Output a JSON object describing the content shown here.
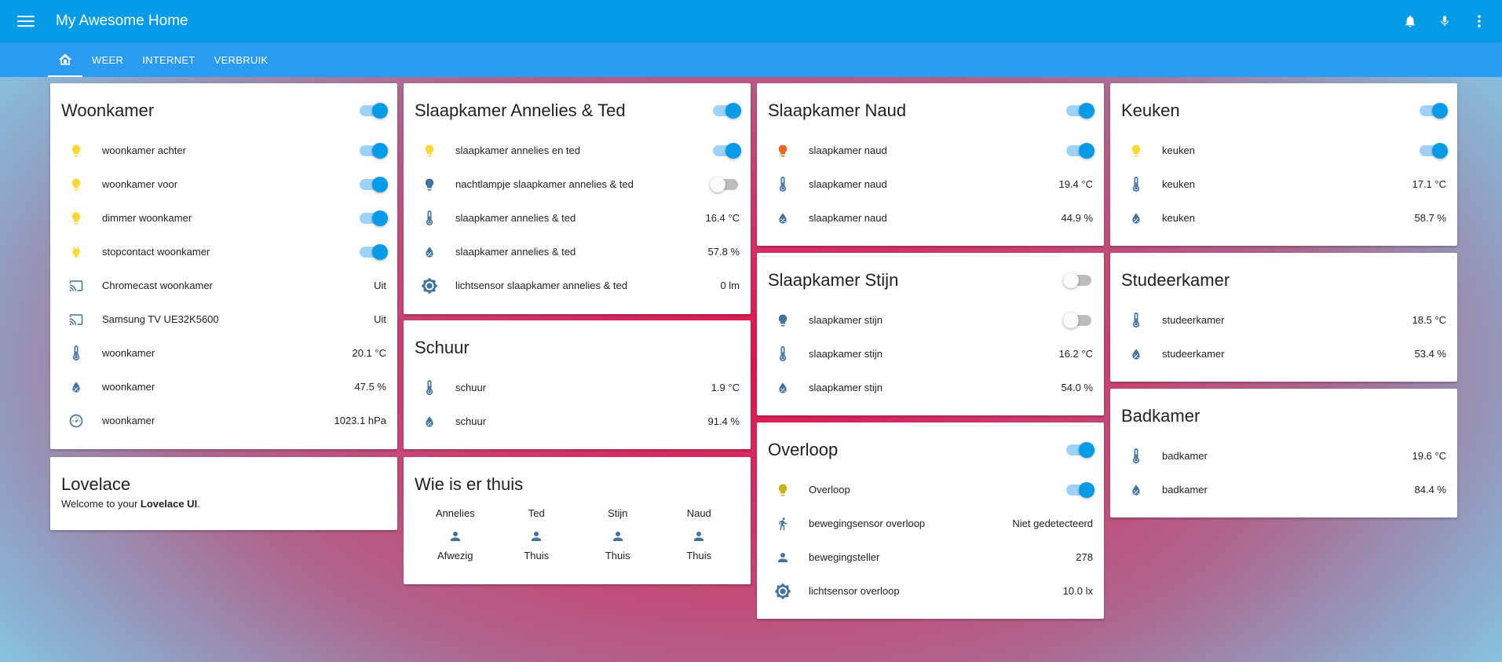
{
  "app": {
    "title": "My Awesome Home"
  },
  "icons": {
    "menu": "menu-icon",
    "bell": "bell-icon",
    "mic": "microphone-icon",
    "more": "more-vert-icon",
    "home": "home-icon"
  },
  "colors": {
    "primary": "#039be5",
    "tabs": "#2b9bf0",
    "light_on": "#fdd835",
    "light_off": "#44739e",
    "light_red": "#e8671c",
    "light_dim": "#c9b318",
    "icon": "#44739e"
  },
  "tabs": [
    "WEER",
    "INTERNET",
    "VERBRUIK"
  ],
  "woonkamer": {
    "title": "Woonkamer",
    "rows": [
      {
        "name": "woonkamer achter",
        "icon": "bulb-icon"
      },
      {
        "name": "woonkamer voor",
        "icon": "bulb-icon"
      },
      {
        "name": "dimmer woonkamer",
        "icon": "bulb-icon"
      },
      {
        "name": "stopcontact woonkamer",
        "icon": "plug-icon"
      },
      {
        "name": "Chromecast woonkamer",
        "icon": "cast-icon",
        "value": "Uit"
      },
      {
        "name": "Samsung TV UE32K5600",
        "icon": "cast-icon",
        "value": "Uit"
      },
      {
        "name": "woonkamer",
        "icon": "thermometer-icon",
        "value": "20.1 °C"
      },
      {
        "name": "woonkamer",
        "icon": "water-percent-icon",
        "value": "47.5 %"
      },
      {
        "name": "woonkamer",
        "icon": "gauge-icon",
        "value": "1023.1 hPa"
      }
    ]
  },
  "lovelace": {
    "title": "Lovelace",
    "text_pre": "Welcome to your ",
    "text_bold": "Lovelace UI",
    "text_post": "."
  },
  "slaapkamer_at": {
    "title": "Slaapkamer Annelies & Ted",
    "rows": [
      {
        "name": "slaapkamer annelies en ted",
        "icon": "bulb-icon"
      },
      {
        "name": "nachtlampje slaapkamer annelies & ted",
        "icon": "bulb-icon"
      },
      {
        "name": "slaapkamer annelies & ted",
        "icon": "thermometer-icon",
        "value": "16.4 °C"
      },
      {
        "name": "slaapkamer annelies & ted",
        "icon": "water-percent-icon",
        "value": "57.8 %"
      },
      {
        "name": "lichtsensor slaapkamer annelies & ted",
        "icon": "brightness-icon",
        "value": "0 lm"
      }
    ]
  },
  "schuur": {
    "title": "Schuur",
    "rows": [
      {
        "name": "schuur",
        "icon": "thermometer-icon",
        "value": "1.9 °C"
      },
      {
        "name": "schuur",
        "icon": "water-percent-icon",
        "value": "91.4 %"
      }
    ]
  },
  "wie": {
    "title": "Wie is er thuis",
    "persons": [
      {
        "name": "Annelies",
        "state": "Afwezig"
      },
      {
        "name": "Ted",
        "state": "Thuis"
      },
      {
        "name": "Stijn",
        "state": "Thuis"
      },
      {
        "name": "Naud",
        "state": "Thuis"
      }
    ]
  },
  "slaapkamer_naud": {
    "title": "Slaapkamer Naud",
    "rows": [
      {
        "name": "slaapkamer naud",
        "icon": "bulb-icon"
      },
      {
        "name": "slaapkamer naud",
        "icon": "thermometer-icon",
        "value": "19.4 °C"
      },
      {
        "name": "slaapkamer naud",
        "icon": "water-percent-icon",
        "value": "44.9 %"
      }
    ]
  },
  "slaapkamer_stijn": {
    "title": "Slaapkamer Stijn",
    "rows": [
      {
        "name": "slaapkamer stijn",
        "icon": "bulb-icon"
      },
      {
        "name": "slaapkamer stijn",
        "icon": "thermometer-icon",
        "value": "16.2 °C"
      },
      {
        "name": "slaapkamer stijn",
        "icon": "water-percent-icon",
        "value": "54.0 %"
      }
    ]
  },
  "overloop": {
    "title": "Overloop",
    "rows": [
      {
        "name": "Overloop",
        "icon": "bulb-icon"
      },
      {
        "name": "bewegingsensor overloop",
        "icon": "walk-icon",
        "value": "Niet gedetecteerd"
      },
      {
        "name": "bewegingsteller",
        "icon": "account-icon",
        "value": "278"
      },
      {
        "name": "lichtsensor overloop",
        "icon": "brightness-icon",
        "value": "10.0 lx"
      }
    ]
  },
  "keuken": {
    "title": "Keuken",
    "rows": [
      {
        "name": "keuken",
        "icon": "bulb-icon"
      },
      {
        "name": "keuken",
        "icon": "thermometer-icon",
        "value": "17.1 °C"
      },
      {
        "name": "keuken",
        "icon": "water-percent-icon",
        "value": "58.7 %"
      }
    ]
  },
  "studeerkamer": {
    "title": "Studeerkamer",
    "rows": [
      {
        "name": "studeerkamer",
        "icon": "thermometer-icon",
        "value": "18.5 °C"
      },
      {
        "name": "studeerkamer",
        "icon": "water-percent-icon",
        "value": "53.4 %"
      }
    ]
  },
  "badkamer": {
    "title": "Badkamer",
    "rows": [
      {
        "name": "badkamer",
        "icon": "thermometer-icon",
        "value": "19.6 °C"
      },
      {
        "name": "badkamer",
        "icon": "water-percent-icon",
        "value": "84.4 %"
      }
    ]
  }
}
